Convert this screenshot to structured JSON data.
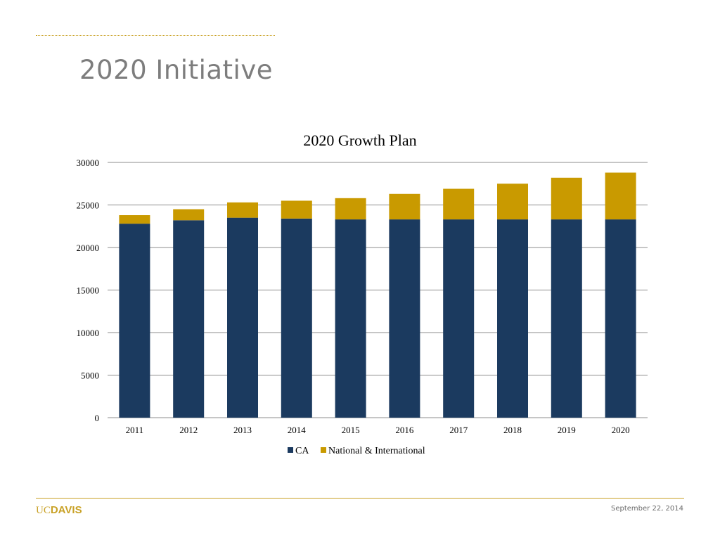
{
  "slide": {
    "title": "2020 Initiative",
    "date": "September 22, 2014",
    "logo_part1": "UC",
    "logo_part2": "DAVIS"
  },
  "colors": {
    "ca": "#1b3a5f",
    "national": "#c99a00",
    "accent": "#c9a227",
    "grid": "#8c8c8c"
  },
  "chart_data": {
    "type": "bar",
    "stacked": true,
    "title": "2020 Growth Plan",
    "xlabel": "",
    "ylabel": "",
    "categories": [
      "2011",
      "2012",
      "2013",
      "2014",
      "2015",
      "2016",
      "2017",
      "2018",
      "2019",
      "2020"
    ],
    "series": [
      {
        "name": "CA",
        "values": [
          22800,
          23200,
          23500,
          23400,
          23300,
          23300,
          23300,
          23300,
          23300,
          23300
        ]
      },
      {
        "name": "National & International",
        "values": [
          1000,
          1300,
          1800,
          2100,
          2500,
          3000,
          3600,
          4200,
          4900,
          5500
        ]
      }
    ],
    "ylim": [
      0,
      30000
    ],
    "yticks": [
      0,
      5000,
      10000,
      15000,
      20000,
      25000,
      30000
    ],
    "grid": true,
    "legend_position": "bottom"
  }
}
